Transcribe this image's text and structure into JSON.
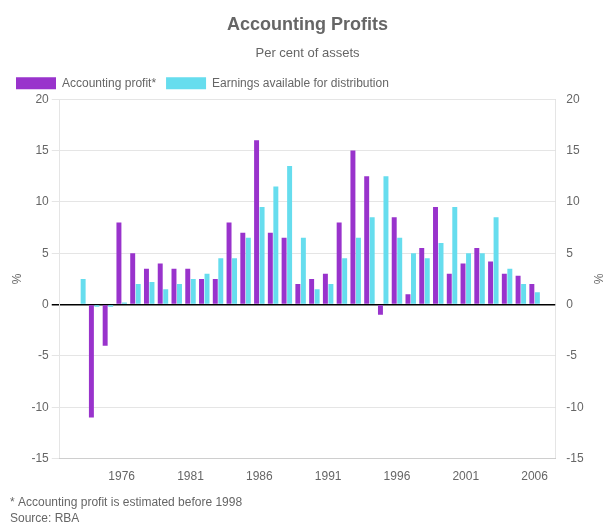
{
  "chart_data": {
    "type": "bar",
    "title": "Accounting Profits",
    "subtitle": "Per cent of assets",
    "y_label": "%",
    "y2_label": "%",
    "footnotes": [
      "* Accounting profit is estimated before 1998",
      "Source: RBA"
    ],
    "x": [
      1973,
      1974,
      1975,
      1976,
      1977,
      1978,
      1979,
      1980,
      1981,
      1982,
      1983,
      1984,
      1985,
      1986,
      1987,
      1988,
      1989,
      1990,
      1991,
      1992,
      1993,
      1994,
      1995,
      1996,
      1997,
      1998,
      1999,
      2000,
      2001,
      2002,
      2003,
      2004,
      2005,
      2006
    ],
    "series": [
      {
        "name": "Accounting profit*",
        "color": "#9933CC",
        "values": [
          0.0,
          -11.0,
          -4.0,
          8.0,
          5.0,
          3.5,
          4.0,
          3.5,
          3.5,
          2.5,
          2.5,
          8.0,
          7.0,
          16.0,
          7.0,
          6.5,
          2.0,
          2.5,
          3.0,
          8.0,
          15.0,
          12.5,
          -1.0,
          8.5,
          1.0,
          5.5,
          9.5,
          3.0,
          4.0,
          5.5,
          4.2,
          3.0,
          2.8,
          2.0
        ]
      },
      {
        "name": "Earnings available for distribution",
        "color": "#66DDEE",
        "values": [
          2.5,
          -0.2,
          -0.2,
          0.2,
          2.0,
          2.2,
          1.5,
          2.0,
          2.5,
          3.0,
          4.5,
          4.5,
          6.5,
          9.5,
          11.5,
          13.5,
          6.5,
          1.5,
          2.0,
          4.5,
          6.5,
          8.5,
          12.5,
          6.5,
          5.0,
          4.5,
          6.0,
          9.5,
          5.0,
          5.0,
          8.5,
          3.5,
          2.0,
          1.2
        ]
      }
    ],
    "xlim": [
      1971.5,
      2007.5
    ],
    "xticks": [
      1976,
      1981,
      1986,
      1991,
      1996,
      2001,
      2006
    ],
    "ylim": [
      -15,
      20
    ],
    "yticks": [
      -15,
      -10,
      -5,
      0,
      5,
      10,
      15,
      20
    ],
    "y2lim": [
      -15,
      20
    ],
    "y2ticks": [
      -15,
      -10,
      -5,
      0,
      5,
      10,
      15,
      20
    ],
    "grid": true,
    "legend": "upper left"
  }
}
